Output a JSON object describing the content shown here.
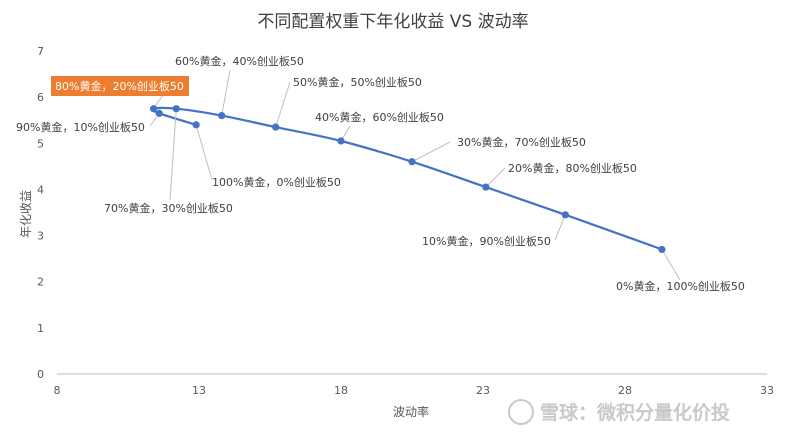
{
  "chart_data": {
    "type": "scatter",
    "title": "不同配置权重下年化收益 VS 波动率",
    "xlabel": "波动率",
    "ylabel": "年化收益",
    "xlim": [
      8,
      33
    ],
    "ylim": [
      0,
      7
    ],
    "xticks": [
      8,
      13,
      18,
      23,
      28,
      33
    ],
    "yticks": [
      0,
      1,
      2,
      3,
      4,
      5,
      6,
      7
    ],
    "grid": false,
    "series": [
      {
        "color": "#4472c4",
        "points": [
          {
            "x": 12.9,
            "y": 5.4,
            "label": "100%黄金，0%创业板50"
          },
          {
            "x": 11.6,
            "y": 5.65,
            "label": "90%黄金，10%创业板50"
          },
          {
            "x": 11.4,
            "y": 5.75,
            "label": "80%黄金，20%创业板50",
            "highlight": true
          },
          {
            "x": 12.2,
            "y": 5.75,
            "label": "70%黄金，30%创业板50"
          },
          {
            "x": 13.8,
            "y": 5.6,
            "label": "60%黄金，40%创业板50"
          },
          {
            "x": 15.7,
            "y": 5.35,
            "label": "50%黄金，50%创业板50"
          },
          {
            "x": 18.0,
            "y": 5.05,
            "label": "40%黄金，60%创业板50"
          },
          {
            "x": 20.5,
            "y": 4.6,
            "label": "30%黄金，70%创业板50"
          },
          {
            "x": 23.1,
            "y": 4.05,
            "label": "20%黄金，80%创业板50"
          },
          {
            "x": 25.9,
            "y": 3.45,
            "label": "10%黄金，90%创业板50"
          },
          {
            "x": 29.3,
            "y": 2.7,
            "label": "0%黄金，100%创业板50"
          }
        ]
      }
    ],
    "highlight_color": "#ed7d31"
  },
  "watermark": "雪球：微积分量化价投"
}
